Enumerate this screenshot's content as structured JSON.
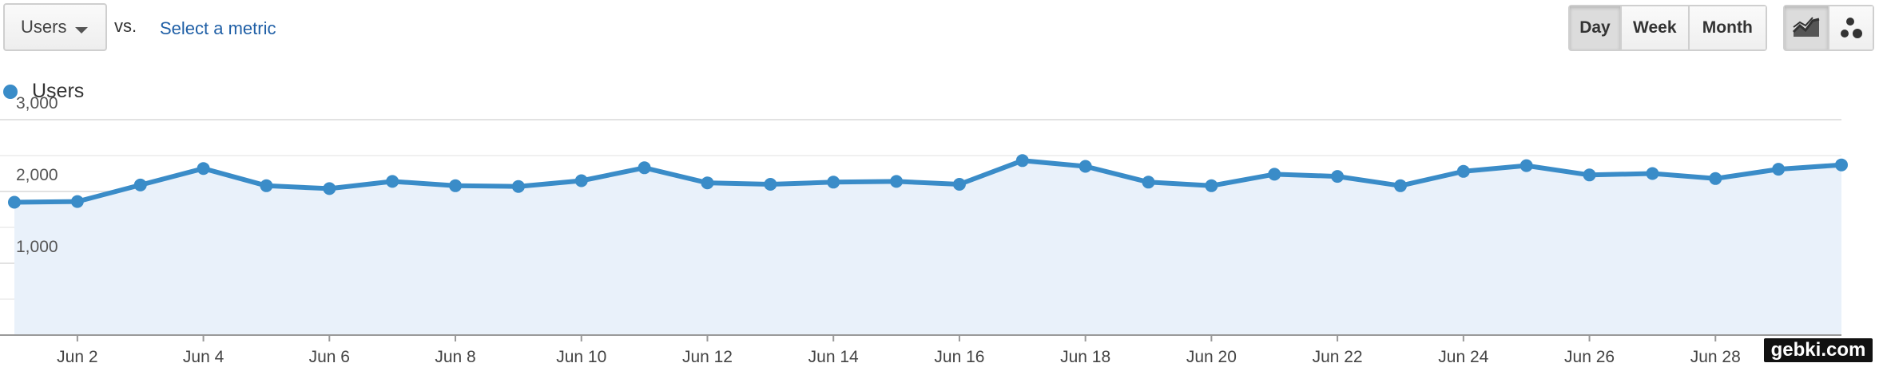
{
  "toolbar": {
    "metric_value": "Users",
    "vs_label": "vs.",
    "compare_link": "Select a metric",
    "period_buttons": {
      "day": "Day",
      "week": "Week",
      "month": "Month"
    },
    "active_period": "Day",
    "chart_type_icons": [
      "line-chart-icon",
      "motion-chart-icon"
    ]
  },
  "legend": {
    "label": "Users",
    "color": "#3a8cc8"
  },
  "watermark": "gebki.com",
  "chart_data": {
    "type": "line",
    "series": [
      {
        "name": "Users",
        "x": [
          "Jun 1",
          "Jun 2",
          "Jun 3",
          "Jun 4",
          "Jun 5",
          "Jun 6",
          "Jun 7",
          "Jun 8",
          "Jun 9",
          "Jun 10",
          "Jun 11",
          "Jun 12",
          "Jun 13",
          "Jun 14",
          "Jun 15",
          "Jun 16",
          "Jun 17",
          "Jun 18",
          "Jun 19",
          "Jun 20",
          "Jun 21",
          "Jun 22",
          "Jun 23",
          "Jun 24",
          "Jun 25",
          "Jun 26",
          "Jun 27",
          "Jun 28",
          "Jun 29",
          "Jun 30"
        ],
        "values": [
          1850,
          1860,
          2090,
          2320,
          2080,
          2040,
          2140,
          2080,
          2070,
          2150,
          2330,
          2120,
          2100,
          2130,
          2140,
          2100,
          2430,
          2350,
          2130,
          2080,
          2240,
          2210,
          2080,
          2280,
          2360,
          2230,
          2250,
          2180,
          2310,
          2370
        ]
      }
    ],
    "yticks": [
      "3,000",
      "2,000",
      "1,000"
    ],
    "ytick_values": [
      3000,
      2000,
      1000
    ],
    "xticks": [
      "Jun 2",
      "Jun 4",
      "Jun 6",
      "Jun 8",
      "Jun 10",
      "Jun 12",
      "Jun 14",
      "Jun 16",
      "Jun 18",
      "Jun 20",
      "Jun 22",
      "Jun 24",
      "Jun 26",
      "Jun 28"
    ],
    "ylim": [
      0,
      3000
    ],
    "grid": true,
    "line_color": "#3a8cc8",
    "fill_color": "#e9f1fa"
  }
}
